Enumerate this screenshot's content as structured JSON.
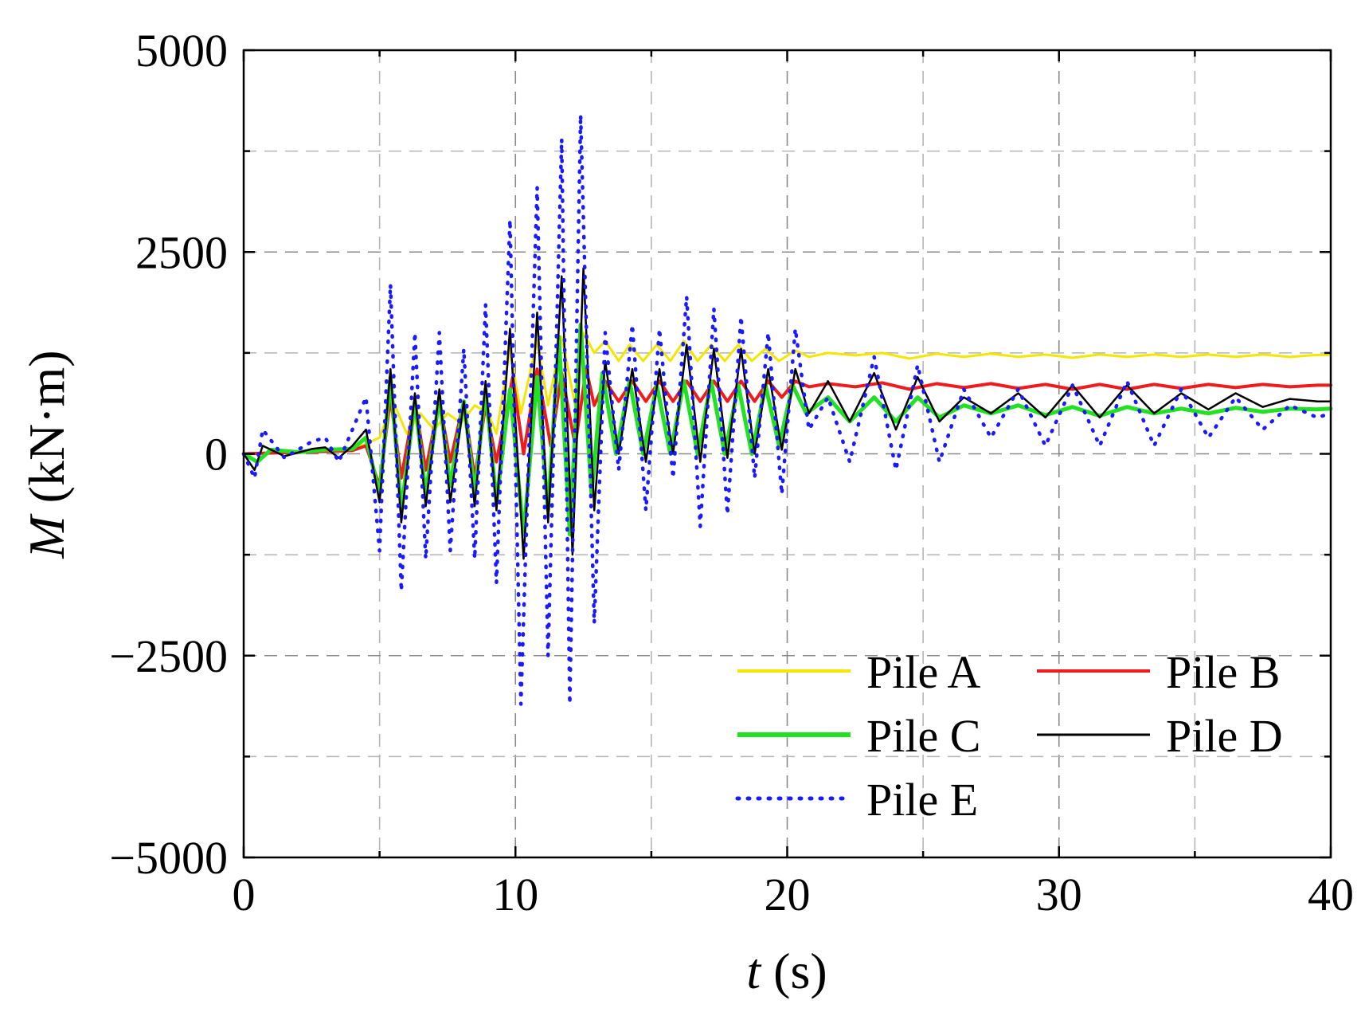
{
  "chart_data": {
    "type": "line",
    "title": "",
    "xlabel": {
      "symbol": "t",
      "unit": " (s)"
    },
    "ylabel": {
      "symbol": "M",
      "unit": " (kN·m)"
    },
    "xlim": [
      0,
      40
    ],
    "ylim": [
      -5000,
      5000
    ],
    "xticks": [
      0,
      10,
      20,
      30,
      40
    ],
    "xtick_labels": [
      "0",
      "10",
      "20",
      "30",
      "40"
    ],
    "yticks": [
      -5000,
      -2500,
      0,
      2500,
      5000
    ],
    "ytick_labels": [
      "−5000",
      "−2500",
      "0",
      "2500",
      "5000"
    ],
    "grid": true,
    "legend_position": "bottom-right",
    "series": [
      {
        "name": "Pile A",
        "color": "#f5e600",
        "style": "solid",
        "points": [
          [
            0,
            0
          ],
          [
            1,
            10
          ],
          [
            2,
            30
          ],
          [
            3,
            40
          ],
          [
            4,
            60
          ],
          [
            4.5,
            120
          ],
          [
            5,
            200
          ],
          [
            5.5,
            650
          ],
          [
            6,
            250
          ],
          [
            6.5,
            500
          ],
          [
            7,
            300
          ],
          [
            7.5,
            500
          ],
          [
            8,
            380
          ],
          [
            8.5,
            600
          ],
          [
            9,
            500
          ],
          [
            9.3,
            250
          ],
          [
            9.8,
            1300
          ],
          [
            10.2,
            500
          ],
          [
            10.8,
            1400
          ],
          [
            11.2,
            600
          ],
          [
            11.7,
            1450
          ],
          [
            12.2,
            600
          ],
          [
            12.5,
            1500
          ],
          [
            12.9,
            1250
          ],
          [
            13.3,
            1400
          ],
          [
            13.8,
            1150
          ],
          [
            14.2,
            1350
          ],
          [
            14.7,
            1150
          ],
          [
            15.2,
            1350
          ],
          [
            15.7,
            1150
          ],
          [
            16.2,
            1400
          ],
          [
            16.7,
            1150
          ],
          [
            17.2,
            1350
          ],
          [
            17.7,
            1150
          ],
          [
            18.2,
            1350
          ],
          [
            18.7,
            1150
          ],
          [
            19.2,
            1300
          ],
          [
            19.7,
            1150
          ],
          [
            20.3,
            1280
          ],
          [
            20.8,
            1200
          ],
          [
            21.5,
            1250
          ],
          [
            22.5,
            1220
          ],
          [
            23.5,
            1250
          ],
          [
            24.5,
            1180
          ],
          [
            25.5,
            1240
          ],
          [
            26.5,
            1200
          ],
          [
            27.5,
            1240
          ],
          [
            28.5,
            1200
          ],
          [
            29.5,
            1230
          ],
          [
            30.5,
            1190
          ],
          [
            31.5,
            1230
          ],
          [
            32.5,
            1200
          ],
          [
            33.5,
            1230
          ],
          [
            34.5,
            1200
          ],
          [
            35.5,
            1230
          ],
          [
            36.5,
            1200
          ],
          [
            37.5,
            1230
          ],
          [
            38.5,
            1200
          ],
          [
            39.5,
            1225
          ],
          [
            40,
            1225
          ]
        ]
      },
      {
        "name": "Pile B",
        "color": "#ee1c1c",
        "style": "solid",
        "points": [
          [
            0,
            0
          ],
          [
            1,
            10
          ],
          [
            2,
            20
          ],
          [
            3,
            30
          ],
          [
            4,
            40
          ],
          [
            4.5,
            100
          ],
          [
            5,
            -400
          ],
          [
            5.4,
            700
          ],
          [
            5.8,
            -300
          ],
          [
            6.3,
            650
          ],
          [
            6.7,
            -200
          ],
          [
            7.2,
            650
          ],
          [
            7.6,
            -100
          ],
          [
            8.1,
            650
          ],
          [
            8.5,
            -300
          ],
          [
            8.9,
            600
          ],
          [
            9.3,
            -100
          ],
          [
            9.9,
            950
          ],
          [
            10.3,
            0
          ],
          [
            10.8,
            1050
          ],
          [
            11.3,
            100
          ],
          [
            11.7,
            1000
          ],
          [
            12.2,
            100
          ],
          [
            12.6,
            1050
          ],
          [
            12.9,
            600
          ],
          [
            13.3,
            900
          ],
          [
            13.8,
            650
          ],
          [
            14.3,
            900
          ],
          [
            14.8,
            650
          ],
          [
            15.3,
            900
          ],
          [
            15.8,
            650
          ],
          [
            16.3,
            900
          ],
          [
            16.8,
            650
          ],
          [
            17.3,
            900
          ],
          [
            17.8,
            650
          ],
          [
            18.3,
            900
          ],
          [
            18.8,
            650
          ],
          [
            19.3,
            900
          ],
          [
            19.8,
            700
          ],
          [
            20.3,
            900
          ],
          [
            20.8,
            830
          ],
          [
            21.5,
            870
          ],
          [
            22.5,
            830
          ],
          [
            23.5,
            880
          ],
          [
            24.5,
            800
          ],
          [
            25.5,
            870
          ],
          [
            26.5,
            820
          ],
          [
            27.5,
            870
          ],
          [
            28.5,
            810
          ],
          [
            29.5,
            860
          ],
          [
            30.5,
            800
          ],
          [
            31.5,
            860
          ],
          [
            32.5,
            800
          ],
          [
            33.5,
            860
          ],
          [
            34.5,
            810
          ],
          [
            35.5,
            860
          ],
          [
            36.5,
            820
          ],
          [
            37.5,
            860
          ],
          [
            38.5,
            830
          ],
          [
            39.5,
            850
          ],
          [
            40,
            850
          ]
        ]
      },
      {
        "name": "Pile C",
        "color": "#22e022",
        "style": "solid",
        "points": [
          [
            0,
            0
          ],
          [
            0.5,
            -100
          ],
          [
            1,
            50
          ],
          [
            2,
            20
          ],
          [
            3,
            50
          ],
          [
            4,
            60
          ],
          [
            4.5,
            200
          ],
          [
            5,
            -500
          ],
          [
            5.4,
            950
          ],
          [
            5.8,
            -700
          ],
          [
            6.3,
            650
          ],
          [
            6.7,
            -500
          ],
          [
            7.2,
            700
          ],
          [
            7.6,
            -400
          ],
          [
            8.1,
            650
          ],
          [
            8.5,
            -500
          ],
          [
            8.9,
            800
          ],
          [
            9.3,
            -600
          ],
          [
            9.8,
            800
          ],
          [
            10.3,
            -1000
          ],
          [
            10.8,
            950
          ],
          [
            11.2,
            -700
          ],
          [
            11.6,
            1450
          ],
          [
            12,
            -1000
          ],
          [
            12.4,
            1600
          ],
          [
            12.8,
            -500
          ],
          [
            13.2,
            1000
          ],
          [
            13.7,
            0
          ],
          [
            14.2,
            900
          ],
          [
            14.7,
            0
          ],
          [
            15.2,
            850
          ],
          [
            15.7,
            0
          ],
          [
            16.2,
            900
          ],
          [
            16.7,
            0
          ],
          [
            17.2,
            900
          ],
          [
            17.7,
            0
          ],
          [
            18.2,
            850
          ],
          [
            18.7,
            0
          ],
          [
            19.2,
            850
          ],
          [
            19.7,
            100
          ],
          [
            20.2,
            850
          ],
          [
            20.7,
            500
          ],
          [
            21.5,
            700
          ],
          [
            22.3,
            400
          ],
          [
            23.2,
            700
          ],
          [
            24,
            400
          ],
          [
            24.8,
            700
          ],
          [
            25.6,
            450
          ],
          [
            26.5,
            600
          ],
          [
            27.5,
            500
          ],
          [
            28.5,
            600
          ],
          [
            29.5,
            480
          ],
          [
            30.5,
            580
          ],
          [
            31.5,
            470
          ],
          [
            32.5,
            580
          ],
          [
            33.5,
            500
          ],
          [
            34.5,
            560
          ],
          [
            35.5,
            500
          ],
          [
            36.5,
            570
          ],
          [
            37.5,
            520
          ],
          [
            38.5,
            560
          ],
          [
            39.5,
            550
          ],
          [
            40,
            560
          ]
        ]
      },
      {
        "name": "Pile D",
        "color": "#000000",
        "style": "solid",
        "points": [
          [
            0,
            0
          ],
          [
            0.4,
            -200
          ],
          [
            0.7,
            100
          ],
          [
            1.5,
            -30
          ],
          [
            2.5,
            60
          ],
          [
            3,
            80
          ],
          [
            3.5,
            -50
          ],
          [
            4,
            100
          ],
          [
            4.5,
            300
          ],
          [
            5,
            -600
          ],
          [
            5.4,
            1050
          ],
          [
            5.8,
            -850
          ],
          [
            6.3,
            750
          ],
          [
            6.7,
            -650
          ],
          [
            7.2,
            800
          ],
          [
            7.6,
            -600
          ],
          [
            8.1,
            650
          ],
          [
            8.5,
            -650
          ],
          [
            8.9,
            900
          ],
          [
            9.3,
            -700
          ],
          [
            9.8,
            1550
          ],
          [
            10.3,
            -1300
          ],
          [
            10.8,
            1750
          ],
          [
            11.2,
            -850
          ],
          [
            11.7,
            2200
          ],
          [
            12.1,
            -1250
          ],
          [
            12.5,
            2300
          ],
          [
            12.9,
            -700
          ],
          [
            13.3,
            1150
          ],
          [
            13.8,
            0
          ],
          [
            14.3,
            1050
          ],
          [
            14.8,
            -100
          ],
          [
            15.3,
            1050
          ],
          [
            15.8,
            0
          ],
          [
            16.3,
            1350
          ],
          [
            16.8,
            -100
          ],
          [
            17.3,
            1300
          ],
          [
            17.8,
            -50
          ],
          [
            18.3,
            1300
          ],
          [
            18.8,
            0
          ],
          [
            19.3,
            1050
          ],
          [
            19.8,
            50
          ],
          [
            20.3,
            1050
          ],
          [
            20.8,
            500
          ],
          [
            21.5,
            900
          ],
          [
            22.3,
            400
          ],
          [
            23.2,
            1000
          ],
          [
            24,
            300
          ],
          [
            24.8,
            950
          ],
          [
            25.6,
            400
          ],
          [
            26.5,
            700
          ],
          [
            27.5,
            500
          ],
          [
            28.5,
            750
          ],
          [
            29.5,
            450
          ],
          [
            30.5,
            850
          ],
          [
            31.5,
            450
          ],
          [
            32.5,
            850
          ],
          [
            33.5,
            500
          ],
          [
            34.5,
            750
          ],
          [
            35.5,
            550
          ],
          [
            36.5,
            750
          ],
          [
            37.5,
            580
          ],
          [
            38.5,
            680
          ],
          [
            39.5,
            650
          ],
          [
            40,
            650
          ]
        ]
      },
      {
        "name": "Pile E",
        "color": "#1a1aff",
        "style": "dotted",
        "points": [
          [
            0,
            0
          ],
          [
            0.4,
            -300
          ],
          [
            0.7,
            300
          ],
          [
            1.5,
            -50
          ],
          [
            2.5,
            150
          ],
          [
            3,
            200
          ],
          [
            3.5,
            -100
          ],
          [
            4,
            300
          ],
          [
            4.5,
            700
          ],
          [
            5,
            -1200
          ],
          [
            5.4,
            2100
          ],
          [
            5.8,
            -1700
          ],
          [
            6.3,
            1500
          ],
          [
            6.7,
            -1300
          ],
          [
            7.2,
            1500
          ],
          [
            7.6,
            -1200
          ],
          [
            8.1,
            1300
          ],
          [
            8.5,
            -1300
          ],
          [
            8.9,
            1850
          ],
          [
            9.3,
            -1600
          ],
          [
            9.8,
            2900
          ],
          [
            10.2,
            -3100
          ],
          [
            10.8,
            3300
          ],
          [
            11.2,
            -2500
          ],
          [
            11.7,
            3900
          ],
          [
            12,
            -3100
          ],
          [
            12.4,
            4200
          ],
          [
            12.9,
            -2100
          ],
          [
            13.3,
            1500
          ],
          [
            13.8,
            -200
          ],
          [
            14.3,
            1600
          ],
          [
            14.8,
            -700
          ],
          [
            15.3,
            1550
          ],
          [
            15.8,
            -300
          ],
          [
            16.3,
            1950
          ],
          [
            16.8,
            -900
          ],
          [
            17.3,
            1800
          ],
          [
            17.8,
            -750
          ],
          [
            18.3,
            1700
          ],
          [
            18.8,
            -300
          ],
          [
            19.3,
            1500
          ],
          [
            19.8,
            -500
          ],
          [
            20.3,
            1550
          ],
          [
            20.8,
            300
          ],
          [
            21.5,
            700
          ],
          [
            22.3,
            -100
          ],
          [
            23.2,
            1200
          ],
          [
            24,
            -200
          ],
          [
            24.8,
            1100
          ],
          [
            25.6,
            -100
          ],
          [
            26.5,
            800
          ],
          [
            27.5,
            200
          ],
          [
            28.5,
            800
          ],
          [
            29.5,
            100
          ],
          [
            30.5,
            850
          ],
          [
            31.5,
            100
          ],
          [
            32.5,
            900
          ],
          [
            33.5,
            100
          ],
          [
            34.5,
            800
          ],
          [
            35.5,
            200
          ],
          [
            36.5,
            700
          ],
          [
            37.5,
            300
          ],
          [
            38.5,
            600
          ],
          [
            39.5,
            450
          ],
          [
            40,
            500
          ]
        ]
      }
    ]
  }
}
